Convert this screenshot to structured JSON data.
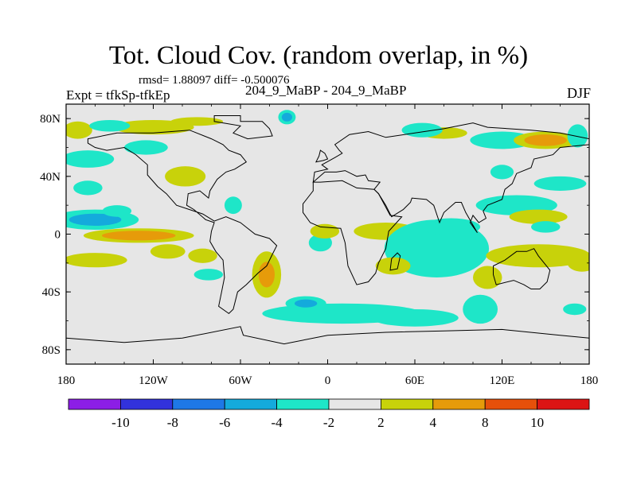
{
  "header": {
    "title": "Tot. Cloud Cov. (random overlap, in %)",
    "stats": "rmsd= 1.88097 diff= -0.500076",
    "expt": "Expt = tfkSp-tfkEp",
    "case": "204_9_MaBP - 204_9_MaBP",
    "season": "DJF"
  },
  "chart_data": {
    "type": "heatmap",
    "title": "Tot. Cloud Cov. (random overlap, in %)",
    "subtitle": "rmsd= 1.88097 diff= -0.500076",
    "xlabel": "",
    "ylabel": "",
    "xlim": [
      -180,
      180
    ],
    "ylim": [
      -90,
      90
    ],
    "x_ticks": [
      -180,
      -120,
      -60,
      0,
      60,
      120,
      180
    ],
    "x_tick_labels": [
      "180",
      "120W",
      "60W",
      "0",
      "60E",
      "120E",
      "180"
    ],
    "y_ticks": [
      80,
      40,
      0,
      -40,
      -80
    ],
    "y_tick_labels": [
      "80N",
      "40N",
      "0",
      "40S",
      "80S"
    ],
    "colorbar": {
      "levels": [
        -10,
        -8,
        -6,
        -4,
        -2,
        2,
        4,
        8,
        10
      ],
      "labels": [
        "-10",
        "-8",
        "-6",
        "-4",
        "-2",
        "2",
        "4",
        "8",
        "10"
      ],
      "colors": [
        "#8c1ee6",
        "#3232dc",
        "#1e78e6",
        "#14aadc",
        "#1ee6c8",
        "#e6e6e6",
        "#c8d20a",
        "#e69b0a",
        "#e6500a",
        "#dc1414"
      ]
    },
    "blobs": [
      {
        "lon": -172,
        "lat": 72,
        "w": 10,
        "h": 6,
        "v": 3
      },
      {
        "lon": -120,
        "lat": 74,
        "w": 28,
        "h": 5,
        "v": 3
      },
      {
        "lon": -90,
        "lat": 78,
        "w": 18,
        "h": 3,
        "v": 2.5
      },
      {
        "lon": -28,
        "lat": 81,
        "w": 6,
        "h": 5,
        "v": -5
      },
      {
        "lon": 80,
        "lat": 70,
        "w": 16,
        "h": 4,
        "v": 2.5
      },
      {
        "lon": 120,
        "lat": 65,
        "w": 22,
        "h": 6,
        "v": -2.6
      },
      {
        "lon": 150,
        "lat": 65,
        "w": 22,
        "h": 6,
        "v": 6
      },
      {
        "lon": 172,
        "lat": 68,
        "w": 7,
        "h": 8,
        "v": -3
      },
      {
        "lon": 65,
        "lat": 72,
        "w": 14,
        "h": 5,
        "v": -2.5
      },
      {
        "lon": -165,
        "lat": 52,
        "w": 18,
        "h": 6,
        "v": -2.8
      },
      {
        "lon": -165,
        "lat": 32,
        "w": 10,
        "h": 5,
        "v": -2.8
      },
      {
        "lon": -98,
        "lat": 40,
        "w": 14,
        "h": 7,
        "v": 3.5
      },
      {
        "lon": -125,
        "lat": 60,
        "w": 15,
        "h": 5,
        "v": -2.6
      },
      {
        "lon": -160,
        "lat": 10,
        "w": 30,
        "h": 7,
        "v": -5
      },
      {
        "lon": -145,
        "lat": 16,
        "w": 10,
        "h": 4,
        "v": -3
      },
      {
        "lon": -130,
        "lat": -1,
        "w": 38,
        "h": 5,
        "v": 6
      },
      {
        "lon": -160,
        "lat": -18,
        "w": 22,
        "h": 5,
        "v": 3
      },
      {
        "lon": -110,
        "lat": -12,
        "w": 12,
        "h": 5,
        "v": 3
      },
      {
        "lon": -86,
        "lat": -15,
        "w": 10,
        "h": 5,
        "v": 3
      },
      {
        "lon": -42,
        "lat": -28,
        "w": 10,
        "h": 16,
        "v": 4.5
      },
      {
        "lon": -65,
        "lat": 20,
        "w": 6,
        "h": 6,
        "v": -2.5
      },
      {
        "lon": -82,
        "lat": -28,
        "w": 10,
        "h": 4,
        "v": -2.5
      },
      {
        "lon": -5,
        "lat": -6,
        "w": 8,
        "h": 6,
        "v": -2.8
      },
      {
        "lon": -2,
        "lat": 2,
        "w": 10,
        "h": 5,
        "v": 3
      },
      {
        "lon": 40,
        "lat": 2,
        "w": 22,
        "h": 6,
        "v": 3
      },
      {
        "lon": 75,
        "lat": -10,
        "w": 36,
        "h": 20,
        "v": -3.5
      },
      {
        "lon": 85,
        "lat": 5,
        "w": 20,
        "h": 6,
        "v": -3
      },
      {
        "lon": 130,
        "lat": 20,
        "w": 28,
        "h": 7,
        "v": -2.6
      },
      {
        "lon": 145,
        "lat": 12,
        "w": 20,
        "h": 5,
        "v": 3
      },
      {
        "lon": 145,
        "lat": -15,
        "w": 36,
        "h": 8,
        "v": 3
      },
      {
        "lon": 175,
        "lat": -20,
        "w": 10,
        "h": 6,
        "v": 3
      },
      {
        "lon": 150,
        "lat": 5,
        "w": 10,
        "h": 4,
        "v": -2.5
      },
      {
        "lon": 45,
        "lat": -22,
        "w": 12,
        "h": 6,
        "v": 3.5
      },
      {
        "lon": 110,
        "lat": -30,
        "w": 10,
        "h": 8,
        "v": 2.5
      },
      {
        "lon": 160,
        "lat": 35,
        "w": 18,
        "h": 5,
        "v": -2.5
      },
      {
        "lon": 10,
        "lat": -55,
        "w": 55,
        "h": 7,
        "v": -3
      },
      {
        "lon": -15,
        "lat": -48,
        "w": 14,
        "h": 5,
        "v": -4.5
      },
      {
        "lon": 60,
        "lat": -58,
        "w": 30,
        "h": 6,
        "v": -3
      },
      {
        "lon": 105,
        "lat": -52,
        "w": 12,
        "h": 10,
        "v": -2.5
      },
      {
        "lon": 170,
        "lat": -52,
        "w": 8,
        "h": 4,
        "v": -2.5
      },
      {
        "lon": -150,
        "lat": 75,
        "w": 14,
        "h": 4,
        "v": -2.5
      },
      {
        "lon": 120,
        "lat": 43,
        "w": 8,
        "h": 5,
        "v": -2.5
      }
    ],
    "coastline": [
      [
        [
          -78,
          82
        ],
        [
          -60,
          82
        ],
        [
          -60,
          78
        ],
        [
          -45,
          78
        ],
        [
          -40,
          73
        ],
        [
          -38,
          68
        ],
        [
          -55,
          66
        ],
        [
          -65,
          70
        ],
        [
          -60,
          75
        ],
        [
          -78,
          78
        ]
      ],
      [
        [
          -165,
          66
        ],
        [
          -145,
          70
        ],
        [
          -120,
          70
        ],
        [
          -95,
          72
        ],
        [
          -80,
          66
        ],
        [
          -72,
          62
        ],
        [
          -68,
          58
        ],
        [
          -60,
          55
        ],
        [
          -56,
          50
        ],
        [
          -64,
          45
        ],
        [
          -70,
          43
        ],
        [
          -76,
          38
        ],
        [
          -81,
          30
        ],
        [
          -82,
          25
        ],
        [
          -88,
          30
        ],
        [
          -96,
          28
        ],
        [
          -97,
          20
        ],
        [
          -92,
          17
        ],
        [
          -84,
          10
        ],
        [
          -78,
          8
        ],
        [
          -80,
          2
        ],
        [
          -81,
          -5
        ],
        [
          -77,
          -12
        ],
        [
          -72,
          -18
        ],
        [
          -71,
          -30
        ],
        [
          -73,
          -40
        ],
        [
          -75,
          -50
        ],
        [
          -68,
          -55
        ],
        [
          -65,
          -52
        ],
        [
          -62,
          -40
        ],
        [
          -56,
          -35
        ],
        [
          -48,
          -27
        ],
        [
          -42,
          -22
        ],
        [
          -38,
          -14
        ],
        [
          -35,
          -8
        ],
        [
          -40,
          -3
        ],
        [
          -50,
          0
        ],
        [
          -60,
          8
        ],
        [
          -70,
          12
        ],
        [
          -78,
          9
        ],
        [
          -86,
          14
        ],
        [
          -104,
          20
        ],
        [
          -111,
          28
        ],
        [
          -117,
          33
        ],
        [
          -124,
          41
        ],
        [
          -124,
          48
        ],
        [
          -132,
          55
        ],
        [
          -140,
          60
        ],
        [
          -152,
          58
        ],
        [
          -160,
          60
        ],
        [
          -165,
          63
        ]
      ],
      [
        [
          -10,
          36
        ],
        [
          -5,
          36
        ],
        [
          10,
          37
        ],
        [
          20,
          32
        ],
        [
          32,
          31
        ],
        [
          35,
          28
        ],
        [
          43,
          13
        ],
        [
          51,
          12
        ],
        [
          42,
          2
        ],
        [
          40,
          -10
        ],
        [
          35,
          -20
        ],
        [
          33,
          -27
        ],
        [
          28,
          -33
        ],
        [
          20,
          -35
        ],
        [
          14,
          -22
        ],
        [
          12,
          -6
        ],
        [
          9,
          4
        ],
        [
          -5,
          5
        ],
        [
          -12,
          8
        ],
        [
          -17,
          15
        ],
        [
          -17,
          21
        ],
        [
          -10,
          30
        ]
      ],
      [
        [
          -10,
          36
        ],
        [
          -9,
          43
        ],
        [
          0,
          45
        ],
        [
          -4,
          48
        ],
        [
          5,
          53
        ],
        [
          10,
          56
        ],
        [
          8,
          58
        ],
        [
          5,
          62
        ],
        [
          15,
          69
        ],
        [
          28,
          71
        ],
        [
          40,
          67
        ],
        [
          60,
          70
        ],
        [
          80,
          73
        ],
        [
          100,
          77
        ],
        [
          110,
          74
        ],
        [
          140,
          72
        ],
        [
          160,
          70
        ],
        [
          180,
          66
        ],
        [
          180,
          62
        ],
        [
          160,
          60
        ],
        [
          155,
          55
        ],
        [
          142,
          52
        ],
        [
          140,
          46
        ],
        [
          130,
          42
        ],
        [
          127,
          35
        ],
        [
          122,
          31
        ],
        [
          120,
          24
        ],
        [
          110,
          20
        ],
        [
          107,
          16
        ],
        [
          109,
          11
        ],
        [
          104,
          8
        ],
        [
          100,
          13
        ],
        [
          98,
          8
        ],
        [
          103,
          1
        ],
        [
          95,
          15
        ],
        [
          92,
          22
        ],
        [
          88,
          22
        ],
        [
          80,
          15
        ],
        [
          77,
          8
        ],
        [
          73,
          20
        ],
        [
          68,
          24
        ],
        [
          58,
          25
        ],
        [
          57,
          22
        ],
        [
          52,
          17
        ],
        [
          44,
          12
        ],
        [
          40,
          20
        ],
        [
          35,
          28
        ],
        [
          32,
          31
        ],
        [
          36,
          36
        ],
        [
          28,
          37
        ],
        [
          26,
          41
        ],
        [
          20,
          40
        ],
        [
          12,
          44
        ],
        [
          6,
          43
        ],
        [
          -2,
          43
        ]
      ],
      [
        [
          114,
          -22
        ],
        [
          122,
          -18
        ],
        [
          130,
          -12
        ],
        [
          137,
          -12
        ],
        [
          142,
          -10
        ],
        [
          145,
          -15
        ],
        [
          153,
          -25
        ],
        [
          151,
          -33
        ],
        [
          146,
          -38
        ],
        [
          140,
          -38
        ],
        [
          135,
          -35
        ],
        [
          128,
          -32
        ],
        [
          116,
          -35
        ],
        [
          114,
          -28
        ]
      ],
      [
        [
          -180,
          -72
        ],
        [
          -140,
          -75
        ],
        [
          -100,
          -72
        ],
        [
          -60,
          -64
        ],
        [
          -58,
          -70
        ],
        [
          -30,
          -76
        ],
        [
          0,
          -70
        ],
        [
          40,
          -68
        ],
        [
          80,
          -67
        ],
        [
          120,
          -66
        ],
        [
          160,
          -70
        ],
        [
          180,
          -72
        ],
        [
          180,
          -90
        ],
        [
          -180,
          -90
        ]
      ],
      [
        [
          43,
          -25
        ],
        [
          48,
          -24
        ],
        [
          50,
          -15
        ],
        [
          48,
          -13
        ],
        [
          44,
          -17
        ]
      ],
      [
        [
          -8,
          50
        ],
        [
          -3,
          51
        ],
        [
          0,
          52
        ],
        [
          -2,
          56
        ],
        [
          -5,
          58
        ],
        [
          -6,
          54
        ]
      ]
    ]
  }
}
